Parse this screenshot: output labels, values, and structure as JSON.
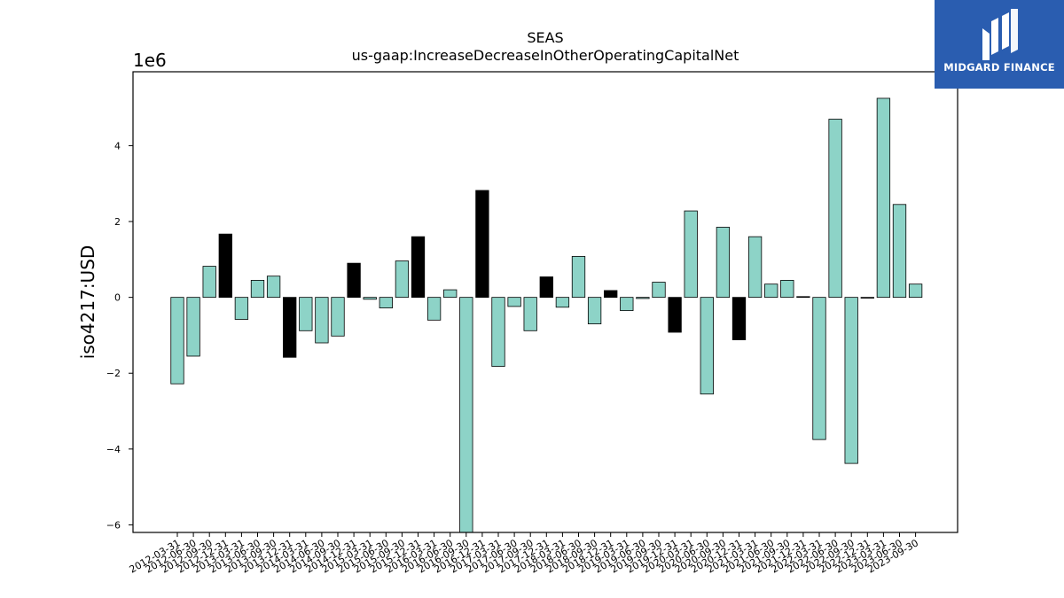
{
  "logo": {
    "text": "MIDGARD FINANCE"
  },
  "chart_data": {
    "type": "bar",
    "title": "SEAS",
    "subtitle": "us-gaap:IncreaseDecreaseInOtherOperatingCapitalNet",
    "ylabel": "iso4217:USD",
    "y_offset_label": "1e6",
    "ylim": [
      -6.2,
      5.95
    ],
    "yticks": [
      -6,
      -4,
      -2,
      0,
      2,
      4
    ],
    "ytick_labels": [
      "−6",
      "−4",
      "−2",
      "0",
      "2",
      "4"
    ],
    "colors": {
      "positive_default": "#8dd3c7",
      "highlight": "#000000",
      "edge": "#000000"
    },
    "categories": [
      "2012-03-31",
      "2012-06-30",
      "2012-09-30",
      "2012-12-31",
      "2013-03-31",
      "2013-06-30",
      "2013-09-30",
      "2013-12-31",
      "2014-03-31",
      "2014-06-30",
      "2014-09-30",
      "2014-12-31",
      "2015-03-31",
      "2015-06-30",
      "2015-09-30",
      "2015-12-31",
      "2016-03-31",
      "2016-06-30",
      "2016-09-30",
      "2016-12-31",
      "2017-03-31",
      "2017-06-30",
      "2017-09-30",
      "2017-12-31",
      "2018-03-31",
      "2018-06-30",
      "2018-09-30",
      "2018-12-31",
      "2019-03-31",
      "2019-06-30",
      "2019-09-30",
      "2019-12-31",
      "2020-03-31",
      "2020-06-30",
      "2020-09-30",
      "2020-12-31",
      "2021-03-31",
      "2021-06-30",
      "2021-09-30",
      "2021-12-31",
      "2022-03-31",
      "2022-06-30",
      "2022-09-30",
      "2022-12-31",
      "2023-03-31",
      "2023-06-30",
      "2023-09-30"
    ],
    "values": [
      -2.28,
      -1.55,
      0.82,
      1.67,
      -0.58,
      0.45,
      0.56,
      -1.58,
      -0.88,
      -1.2,
      -1.02,
      0.9,
      -0.05,
      -0.28,
      0.96,
      1.6,
      -0.6,
      0.2,
      -6.2,
      2.82,
      -1.82,
      -0.24,
      -0.88,
      0.54,
      -0.26,
      1.08,
      -0.7,
      0.18,
      -0.35,
      -0.03,
      0.4,
      -0.92,
      2.28,
      -2.55,
      1.85,
      -1.12,
      1.6,
      0.35,
      0.45,
      0.02,
      -3.75,
      4.7,
      -4.38,
      -0.02,
      5.25,
      2.45,
      0.35
    ],
    "highlighted": [
      false,
      false,
      false,
      true,
      false,
      false,
      false,
      true,
      false,
      false,
      false,
      true,
      false,
      false,
      false,
      true,
      false,
      false,
      false,
      true,
      false,
      false,
      false,
      true,
      false,
      false,
      false,
      true,
      false,
      false,
      false,
      true,
      false,
      false,
      false,
      true,
      false,
      false,
      false,
      true,
      false,
      false,
      false,
      true,
      false,
      false,
      false
    ]
  }
}
